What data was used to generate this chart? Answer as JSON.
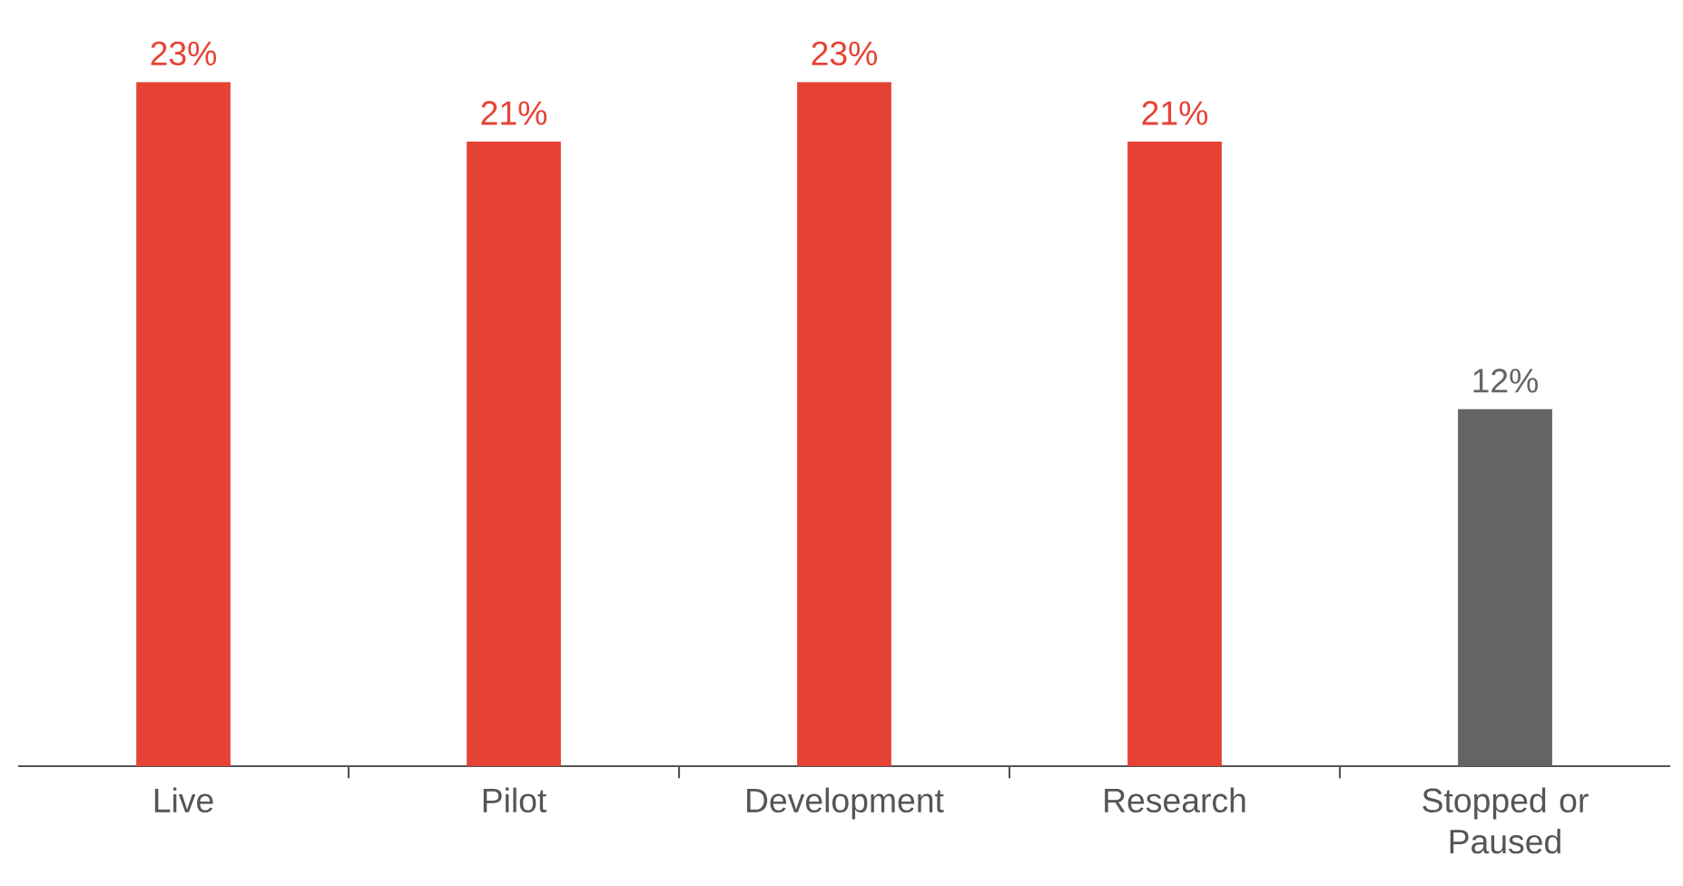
{
  "chart_data": {
    "type": "bar",
    "categories": [
      "Live",
      "Pilot",
      "Development",
      "Research",
      "Stopped or Paused"
    ],
    "values": [
      23,
      21,
      23,
      21,
      12
    ],
    "colors": [
      "#e64335",
      "#e64335",
      "#e64335",
      "#e64335",
      "#636466"
    ],
    "value_labels": [
      "23%",
      "21%",
      "23%",
      "21%",
      "12%"
    ]
  }
}
